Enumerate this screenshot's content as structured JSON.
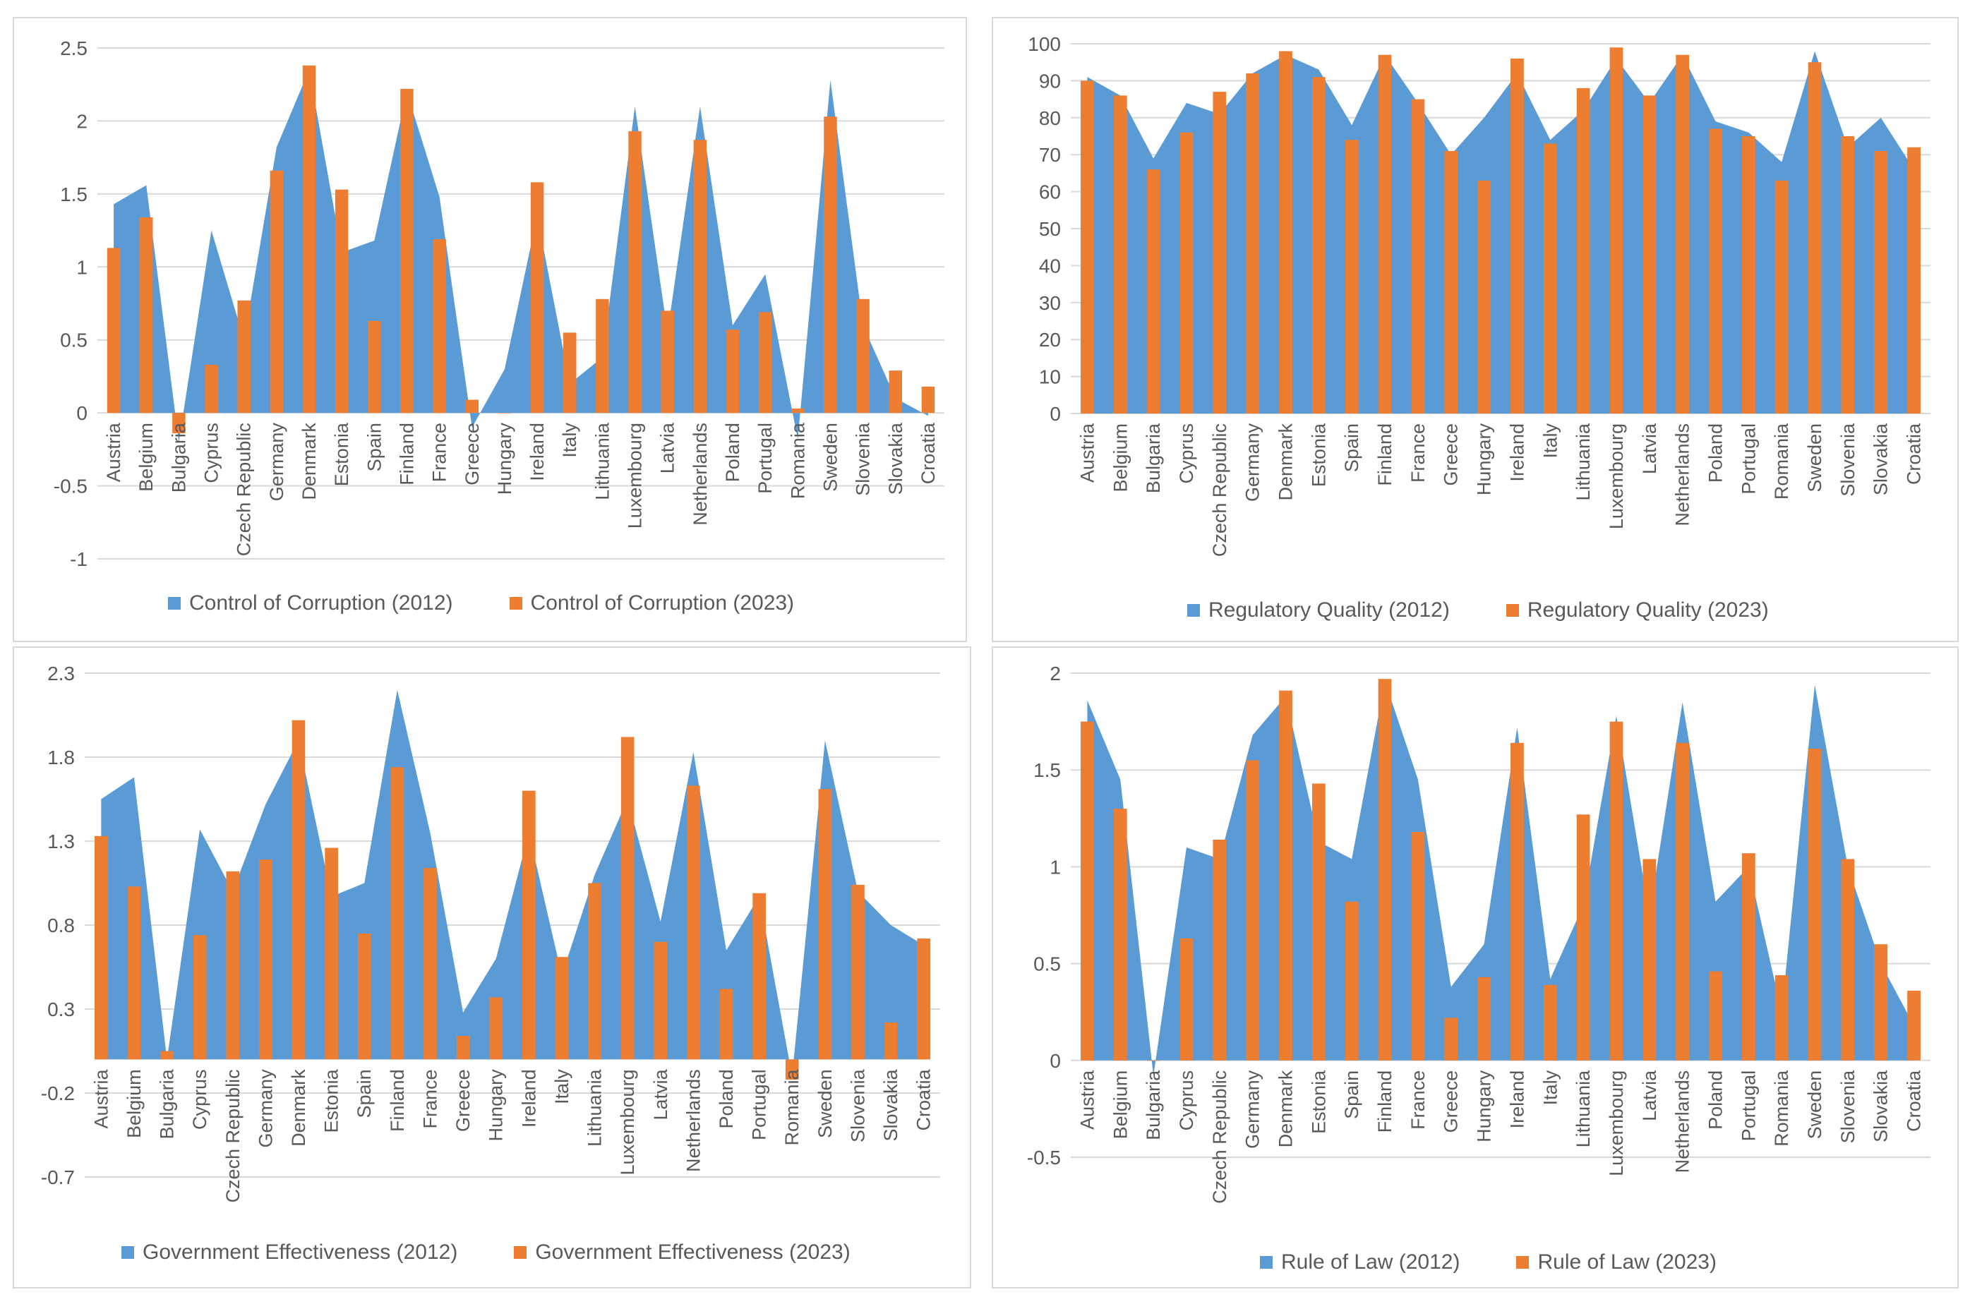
{
  "colors": {
    "series2012": "#5b9bd5",
    "series2023": "#ed7d31",
    "grid": "#d9d9d9",
    "text": "#595959"
  },
  "chart_data": [
    {
      "type": "area+bar",
      "title": "",
      "categories": [
        "Austria",
        "Belgium",
        "Bulgaria",
        "Cyprus",
        "Czech Republic",
        "Germany",
        "Denmark",
        "Estonia",
        "Spain",
        "Finland",
        "France",
        "Greece",
        "Hungary",
        "Ireland",
        "Italy",
        "Lithuania",
        "Luxembourg",
        "Latvia",
        "Netherlands",
        "Poland",
        "Portugal",
        "Romania",
        "Sweden",
        "Slovenia",
        "Slovakia",
        "Croatia"
      ],
      "yticks": [
        "2.5",
        "2",
        "1.5",
        "1",
        "0.5",
        "0",
        "-0.5",
        "-1"
      ],
      "ylim": [
        -1,
        2.5
      ],
      "legend_position": "bottom",
      "series": [
        {
          "name": "Control of Corruption (2012)",
          "kind": "area",
          "values": [
            1.43,
            1.56,
            -0.2,
            1.25,
            0.5,
            1.82,
            2.35,
            1.1,
            1.18,
            2.2,
            1.48,
            -0.1,
            0.3,
            1.35,
            0.2,
            0.38,
            2.1,
            0.55,
            2.1,
            0.6,
            0.95,
            -0.18,
            2.28,
            0.6,
            0.1,
            -0.02
          ]
        },
        {
          "name": "Control of Corruption (2023)",
          "kind": "bar",
          "values": [
            1.13,
            1.34,
            -0.14,
            0.33,
            0.77,
            1.66,
            2.38,
            1.53,
            0.63,
            2.22,
            1.19,
            0.09,
            0.0,
            1.58,
            0.55,
            0.78,
            1.93,
            0.7,
            1.87,
            0.57,
            0.69,
            0.03,
            2.03,
            0.78,
            0.29,
            0.18
          ]
        }
      ]
    },
    {
      "type": "area+bar",
      "title": "",
      "categories": [
        "Austria",
        "Belgium",
        "Bulgaria",
        "Cyprus",
        "Czech Republic",
        "Germany",
        "Denmark",
        "Estonia",
        "Spain",
        "Finland",
        "France",
        "Greece",
        "Hungary",
        "Ireland",
        "Italy",
        "Lithuania",
        "Luxembourg",
        "Latvia",
        "Netherlands",
        "Poland",
        "Portugal",
        "Romania",
        "Sweden",
        "Slovenia",
        "Slovakia",
        "Croatia"
      ],
      "yticks": [
        "100",
        "90",
        "80",
        "70",
        "60",
        "50",
        "40",
        "30",
        "20",
        "10",
        "0"
      ],
      "ylim": [
        0,
        100
      ],
      "legend_position": "bottom",
      "series": [
        {
          "name": "Regulatory Quality (2012)",
          "kind": "area",
          "values": [
            91,
            86,
            69,
            84,
            81,
            92,
            97,
            93,
            78,
            97,
            84,
            70,
            80,
            92,
            74,
            82,
            96,
            84,
            97,
            79,
            76,
            68,
            98,
            72,
            80,
            66
          ]
        },
        {
          "name": "Regulatory Quality (2023)",
          "kind": "bar",
          "values": [
            90,
            86,
            66,
            76,
            87,
            92,
            98,
            91,
            74,
            97,
            85,
            71,
            63,
            96,
            73,
            88,
            99,
            86,
            97,
            77,
            75,
            63,
            95,
            75,
            71,
            72
          ]
        }
      ]
    },
    {
      "type": "area+bar",
      "title": "",
      "categories": [
        "Austria",
        "Belgium",
        "Bulgaria",
        "Cyprus",
        "Czech Republic",
        "Germany",
        "Denmark",
        "Estonia",
        "Spain",
        "Finland",
        "France",
        "Greece",
        "Hungary",
        "Ireland",
        "Italy",
        "Lithuania",
        "Luxembourg",
        "Latvia",
        "Netherlands",
        "Poland",
        "Portugal",
        "Romania",
        "Sweden",
        "Slovenia",
        "Slovakia",
        "Croatia"
      ],
      "yticks": [
        "2.3",
        "1.8",
        "1.3",
        "0.8",
        "0.3",
        "-0.2",
        "-0.7"
      ],
      "ylim": [
        -0.7,
        2.3
      ],
      "legend_position": "bottom",
      "series": [
        {
          "name": "Government Effectiveness (2012)",
          "kind": "area",
          "values": [
            1.55,
            1.68,
            0.0,
            1.37,
            1.0,
            1.52,
            1.9,
            0.97,
            1.05,
            2.2,
            1.35,
            0.28,
            0.6,
            1.35,
            0.5,
            1.1,
            1.55,
            0.82,
            1.83,
            0.65,
            0.97,
            -0.1,
            1.9,
            1.0,
            0.8,
            0.68
          ]
        },
        {
          "name": "Government Effectiveness (2023)",
          "kind": "bar",
          "values": [
            1.33,
            1.03,
            0.05,
            0.74,
            1.12,
            1.19,
            2.02,
            1.26,
            0.75,
            1.74,
            1.14,
            0.14,
            0.37,
            1.6,
            0.61,
            1.05,
            1.92,
            0.7,
            1.63,
            0.42,
            0.99,
            -0.12,
            1.61,
            1.04,
            0.22,
            0.72
          ]
        }
      ]
    },
    {
      "type": "area+bar",
      "title": "",
      "categories": [
        "Austria",
        "Belgium",
        "Bulgaria",
        "Cyprus",
        "Czech Republic",
        "Germany",
        "Denmark",
        "Estonia",
        "Spain",
        "Finland",
        "France",
        "Greece",
        "Hungary",
        "Ireland",
        "Italy",
        "Lithuania",
        "Luxembourg",
        "Latvia",
        "Netherlands",
        "Poland",
        "Portugal",
        "Romania",
        "Sweden",
        "Slovenia",
        "Slovakia",
        "Croatia"
      ],
      "yticks": [
        "2",
        "1.5",
        "1",
        "0.5",
        "0",
        "-0.5"
      ],
      "ylim": [
        -0.5,
        2
      ],
      "legend_position": "bottom",
      "series": [
        {
          "name": "Rule of Law (2012)",
          "kind": "area",
          "values": [
            1.86,
            1.45,
            -0.08,
            1.1,
            1.04,
            1.68,
            1.88,
            1.13,
            1.04,
            1.96,
            1.45,
            0.38,
            0.6,
            1.72,
            0.42,
            0.8,
            1.78,
            0.75,
            1.85,
            0.82,
            1.0,
            0.25,
            1.94,
            1.0,
            0.5,
            0.18
          ]
        },
        {
          "name": "Rule of Law (2023)",
          "kind": "bar",
          "values": [
            1.75,
            1.3,
            0.0,
            0.63,
            1.14,
            1.55,
            1.91,
            1.43,
            0.82,
            1.97,
            1.18,
            0.22,
            0.43,
            1.64,
            0.39,
            1.27,
            1.75,
            1.04,
            1.64,
            0.46,
            1.07,
            0.44,
            1.61,
            1.04,
            0.6,
            0.36
          ]
        }
      ]
    }
  ]
}
